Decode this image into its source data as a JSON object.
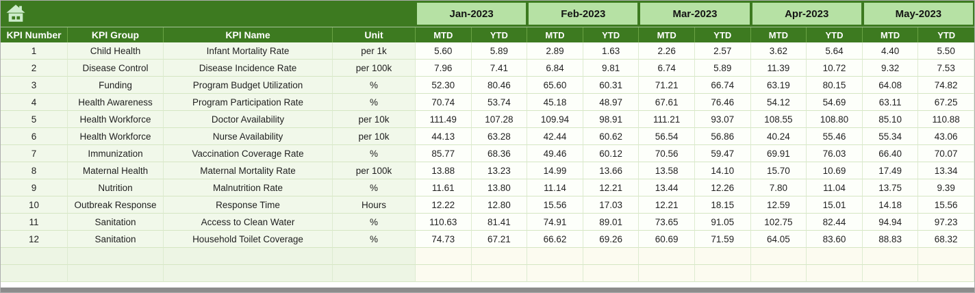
{
  "theme": {
    "header_dark_green": "#3d7a20",
    "month_light_green": "#b6e1a4",
    "row_tint_green": "#f1f8ea",
    "value_cell_white": "#fdfffa",
    "grid_line_green": "#d5e6c3",
    "bottom_bar_gray": "#8c8c8c"
  },
  "icons": {
    "home_icon": "house-icon"
  },
  "table": {
    "left_headers": [
      "KPI Number",
      "KPI Group",
      "KPI Name",
      "Unit"
    ],
    "months": [
      "Jan-2023",
      "Feb-2023",
      "Mar-2023",
      "Apr-2023",
      "May-2023"
    ],
    "sub_headers": [
      "MTD",
      "YTD"
    ],
    "rows": [
      {
        "number": "1",
        "group": "Child Health",
        "name": "Infant Mortality Rate",
        "unit": "per 1k",
        "values": [
          "5.60",
          "5.89",
          "2.89",
          "1.63",
          "2.26",
          "2.57",
          "3.62",
          "5.64",
          "4.40",
          "5.50"
        ]
      },
      {
        "number": "2",
        "group": "Disease Control",
        "name": "Disease Incidence Rate",
        "unit": "per 100k",
        "values": [
          "7.96",
          "7.41",
          "6.84",
          "9.81",
          "6.74",
          "5.89",
          "11.39",
          "10.72",
          "9.32",
          "7.53"
        ]
      },
      {
        "number": "3",
        "group": "Funding",
        "name": "Program Budget Utilization",
        "unit": "%",
        "values": [
          "52.30",
          "80.46",
          "65.60",
          "60.31",
          "71.21",
          "66.74",
          "63.19",
          "80.15",
          "64.08",
          "74.82"
        ]
      },
      {
        "number": "4",
        "group": "Health Awareness",
        "name": "Program Participation Rate",
        "unit": "%",
        "values": [
          "70.74",
          "53.74",
          "45.18",
          "48.97",
          "67.61",
          "76.46",
          "54.12",
          "54.69",
          "63.11",
          "67.25"
        ]
      },
      {
        "number": "5",
        "group": "Health Workforce",
        "name": "Doctor Availability",
        "unit": "per 10k",
        "values": [
          "111.49",
          "107.28",
          "109.94",
          "98.91",
          "111.21",
          "93.07",
          "108.55",
          "108.80",
          "85.10",
          "110.88"
        ]
      },
      {
        "number": "6",
        "group": "Health Workforce",
        "name": "Nurse Availability",
        "unit": "per 10k",
        "values": [
          "44.13",
          "63.28",
          "42.44",
          "60.62",
          "56.54",
          "56.86",
          "40.24",
          "55.46",
          "55.34",
          "43.06"
        ]
      },
      {
        "number": "7",
        "group": "Immunization",
        "name": "Vaccination Coverage Rate",
        "unit": "%",
        "values": [
          "85.77",
          "68.36",
          "49.46",
          "60.12",
          "70.56",
          "59.47",
          "69.91",
          "76.03",
          "66.40",
          "70.07"
        ]
      },
      {
        "number": "8",
        "group": "Maternal Health",
        "name": "Maternal Mortality Rate",
        "unit": "per 100k",
        "values": [
          "13.88",
          "13.23",
          "14.99",
          "13.66",
          "13.58",
          "14.10",
          "15.70",
          "10.69",
          "17.49",
          "13.34"
        ]
      },
      {
        "number": "9",
        "group": "Nutrition",
        "name": "Malnutrition Rate",
        "unit": "%",
        "values": [
          "11.61",
          "13.80",
          "11.14",
          "12.21",
          "13.44",
          "12.26",
          "7.80",
          "11.04",
          "13.75",
          "9.39"
        ]
      },
      {
        "number": "10",
        "group": "Outbreak Response",
        "name": "Response Time",
        "unit": "Hours",
        "values": [
          "12.22",
          "12.80",
          "15.56",
          "17.03",
          "12.21",
          "18.15",
          "12.59",
          "15.01",
          "14.18",
          "15.56"
        ]
      },
      {
        "number": "11",
        "group": "Sanitation",
        "name": "Access to Clean Water",
        "unit": "%",
        "values": [
          "110.63",
          "81.41",
          "74.91",
          "89.01",
          "73.65",
          "91.05",
          "102.75",
          "82.44",
          "94.94",
          "97.23"
        ]
      },
      {
        "number": "12",
        "group": "Sanitation",
        "name": "Household Toilet Coverage",
        "unit": "%",
        "values": [
          "74.73",
          "67.21",
          "66.62",
          "69.26",
          "60.69",
          "71.59",
          "64.05",
          "83.60",
          "88.83",
          "68.32"
        ]
      }
    ],
    "empty_row_count": 2
  }
}
